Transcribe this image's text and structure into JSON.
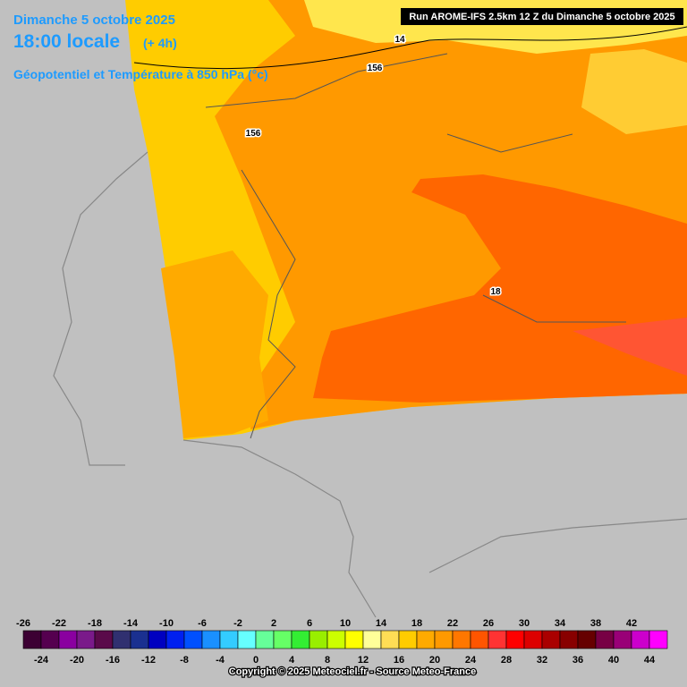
{
  "header": {
    "date": "Dimanche 5 octobre 2025",
    "local_time": "18:00 locale",
    "offset": "(+ 4h)",
    "parameter": "Géopotentiel et Température à 850 hPa (°c)",
    "run": "Run AROME-IFS 2.5km 12 Z du Dimanche 5 octobre 2025"
  },
  "contour_labels": [
    14,
    156,
    156,
    18
  ],
  "legend": {
    "labels": [
      -26,
      -24,
      -22,
      -20,
      -18,
      -16,
      -14,
      -12,
      -10,
      -8,
      -6,
      -4,
      -2,
      0,
      2,
      4,
      6,
      8,
      10,
      12,
      14,
      16,
      18,
      20,
      22,
      24,
      26,
      28,
      30,
      32,
      34,
      36,
      38,
      40,
      42,
      44
    ],
    "colors": [
      "#3c0033",
      "#55004f",
      "#8a00a0",
      "#7a1a8a",
      "#5a0a4a",
      "#303070",
      "#1a3090",
      "#0000c0",
      "#0020f0",
      "#0050ff",
      "#1a90ff",
      "#33ccff",
      "#66ffff",
      "#66ff99",
      "#66ff66",
      "#33ee33",
      "#99ee00",
      "#ccff00",
      "#ffff00",
      "#ffff99",
      "#ffdd55",
      "#ffcc00",
      "#ffaa00",
      "#ff9900",
      "#ff7700",
      "#ff5500",
      "#ff3333",
      "#ff0000",
      "#dd0000",
      "#aa0000",
      "#880000",
      "#660000",
      "#770044",
      "#990077",
      "#cc00cc",
      "#ff00ff"
    ]
  },
  "copyright": "Copyright © 2025 Meteociel.fr - Source Meteo-France"
}
